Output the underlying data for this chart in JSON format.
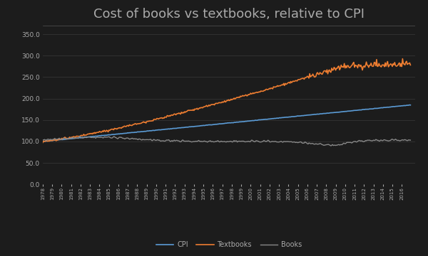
{
  "title": "Cost of books vs textbooks, relative to CPI",
  "title_fontsize": 13,
  "background_color": "#1c1c1c",
  "plot_bg_color": "#1c1c1c",
  "text_color": "#aaaaaa",
  "grid_color": "#3a3a3a",
  "ylim": [
    0,
    370
  ],
  "yticks": [
    0.0,
    50.0,
    100.0,
    150.0,
    200.0,
    250.0,
    300.0,
    350.0
  ],
  "xlabel": "",
  "ylabel": "",
  "series": {
    "CPI": {
      "color": "#5b9bd5",
      "linewidth": 1.2
    },
    "Textbooks": {
      "color": "#ed7d31",
      "linewidth": 1.2
    },
    "Books": {
      "color": "#888888",
      "linewidth": 1.0
    }
  },
  "start_year": 1978,
  "end_year": 2016,
  "legend_ncol": 3,
  "legend_fontsize": 7
}
